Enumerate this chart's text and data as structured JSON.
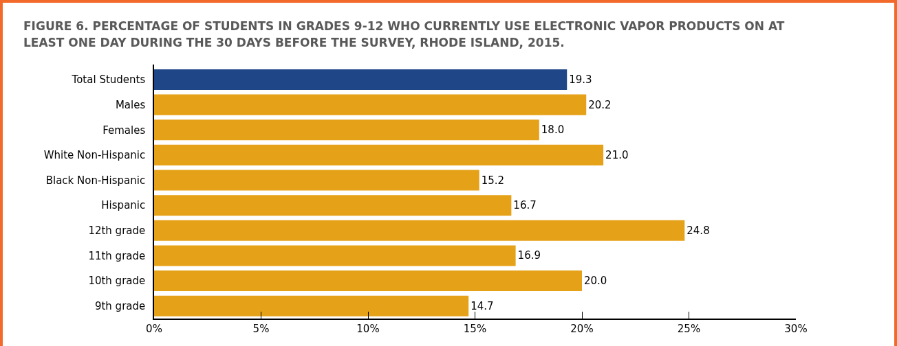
{
  "chart_data": {
    "type": "bar",
    "orientation": "horizontal",
    "title": "FIGURE 6. PERCENTAGE OF STUDENTS IN GRADES 9-12 WHO CURRENTLY USE ELECTRONIC VAPOR PRODUCTS ON AT LEAST ONE DAY DURING THE 30 DAYS BEFORE THE SURVEY, RHODE ISLAND, 2015.",
    "categories": [
      "Total Students",
      "Males",
      "Females",
      "White Non-Hispanic",
      "Black Non-Hispanic",
      "Hispanic",
      "12th grade",
      "11th grade",
      "10th grade",
      "9th grade"
    ],
    "values": [
      19.3,
      20.2,
      18.0,
      21.0,
      15.2,
      16.7,
      24.8,
      16.9,
      20.0,
      14.7
    ],
    "value_labels": [
      "19.3",
      "20.2",
      "18.0",
      "21.0",
      "15.2",
      "16.7",
      "24.8",
      "16.9",
      "20.0",
      "14.7"
    ],
    "colors": [
      "#1f4788",
      "#e5a117",
      "#e5a117",
      "#e5a117",
      "#e5a117",
      "#e5a117",
      "#e5a117",
      "#e5a117",
      "#e5a117",
      "#e5a117"
    ],
    "xlim": [
      0,
      30
    ],
    "xticks": [
      {
        "value": 0,
        "label": "0%"
      },
      {
        "value": 5,
        "label": "5%"
      },
      {
        "value": 10,
        "label": "10%"
      },
      {
        "value": 15,
        "label": "15%"
      },
      {
        "value": 20,
        "label": "20%"
      },
      {
        "value": 25,
        "label": "25%"
      },
      {
        "value": 30,
        "label": "30%"
      }
    ],
    "grid": false
  }
}
